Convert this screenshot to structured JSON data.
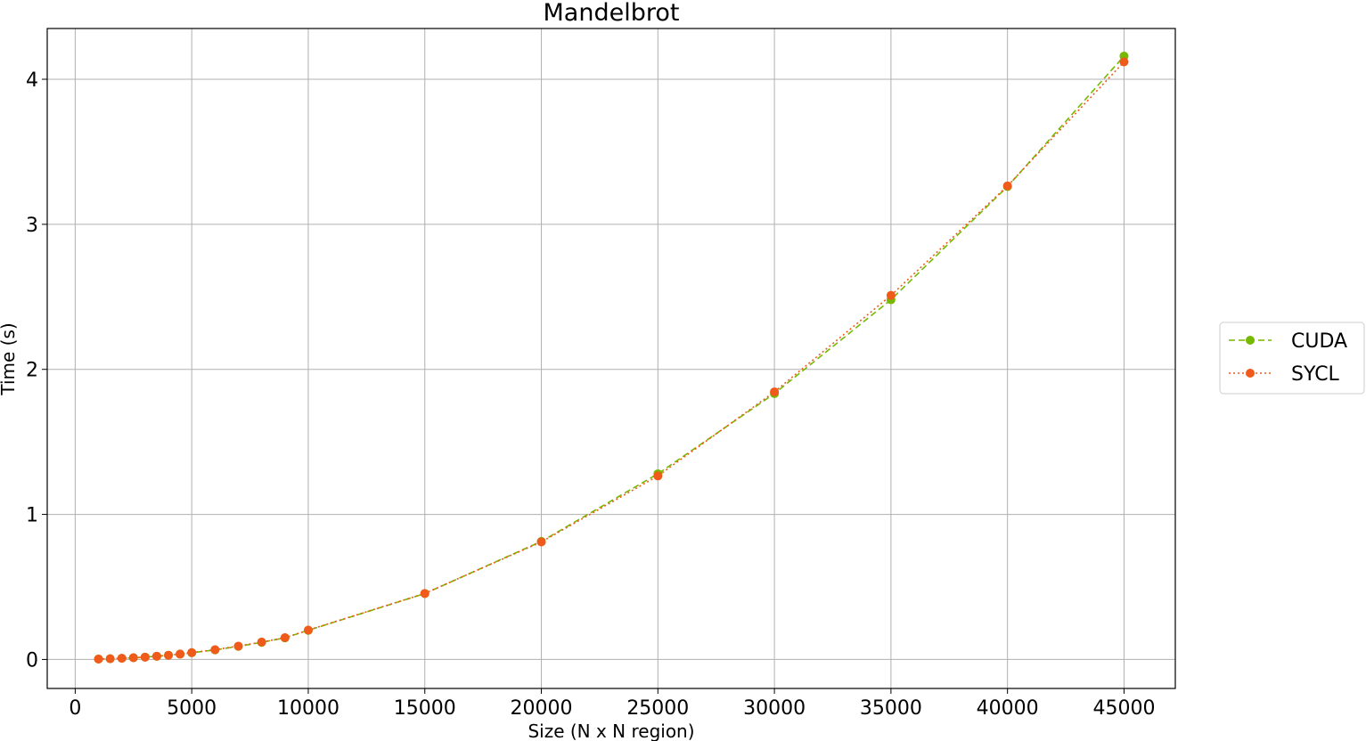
{
  "chart_data": {
    "type": "line",
    "title": "Mandelbrot",
    "xlabel": "Size (N x N region)",
    "ylabel": "Time (s)",
    "xlim": [
      -1200,
      47200
    ],
    "ylim": [
      -0.2,
      4.35
    ],
    "xticks": [
      0,
      5000,
      10000,
      15000,
      20000,
      25000,
      30000,
      35000,
      40000,
      45000
    ],
    "yticks": [
      0,
      1,
      2,
      3,
      4
    ],
    "grid": true,
    "legend_position": "right-outside",
    "series": [
      {
        "name": "CUDA",
        "color": "#76b900",
        "line_style": "dashed",
        "marker": "circle",
        "x": [
          1000,
          1500,
          2000,
          2500,
          3000,
          3500,
          4000,
          4500,
          5000,
          6000,
          7000,
          8000,
          9000,
          10000,
          15000,
          20000,
          25000,
          30000,
          35000,
          40000,
          45000
        ],
        "y": [
          0.003,
          0.005,
          0.008,
          0.012,
          0.016,
          0.022,
          0.029,
          0.037,
          0.046,
          0.066,
          0.09,
          0.118,
          0.149,
          0.201,
          0.454,
          0.814,
          1.28,
          1.833,
          2.48,
          3.26,
          4.16
        ]
      },
      {
        "name": "SYCL",
        "color": "#f05a1a",
        "line_style": "dotted",
        "marker": "circle",
        "x": [
          1000,
          1500,
          2000,
          2500,
          3000,
          3500,
          4000,
          4500,
          5000,
          6000,
          7000,
          8000,
          9000,
          10000,
          15000,
          20000,
          25000,
          30000,
          35000,
          40000,
          45000
        ],
        "y": [
          0.003,
          0.005,
          0.008,
          0.012,
          0.016,
          0.022,
          0.029,
          0.037,
          0.047,
          0.067,
          0.092,
          0.12,
          0.15,
          0.202,
          0.455,
          0.81,
          1.265,
          1.845,
          2.51,
          3.265,
          4.12
        ]
      }
    ]
  }
}
